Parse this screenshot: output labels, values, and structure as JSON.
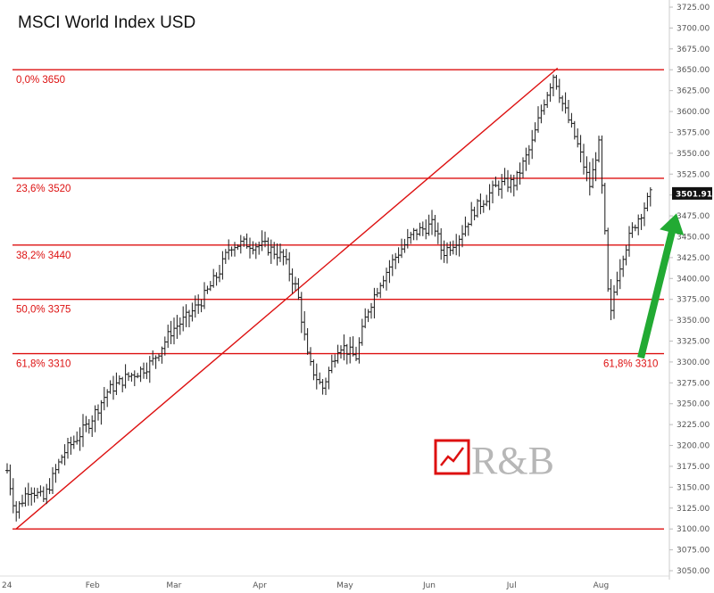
{
  "chart_data": {
    "type": "bar",
    "title": "MSCI World Index USD",
    "style": "ohlc",
    "ylim": [
      3050,
      3725
    ],
    "yticks": [
      3050,
      3075,
      3100,
      3125,
      3150,
      3175,
      3200,
      3225,
      3250,
      3275,
      3300,
      3325,
      3350,
      3375,
      3400,
      3425,
      3450,
      3475,
      3500,
      3525,
      3550,
      3575,
      3600,
      3625,
      3650,
      3675,
      3700,
      3725
    ],
    "xtick_labels": [
      "24",
      "Feb",
      "Mar",
      "Apr",
      "May",
      "Jun",
      "Jul",
      "Aug"
    ],
    "x_range": [
      "2024-01-02",
      "2024-08-20"
    ],
    "last_price": 3501.91,
    "last_price_label": "3501.91",
    "grid": false,
    "colors": {
      "fib_lines": "#dd1111",
      "bars": "#1a1a1a",
      "arrow": "#22aa33",
      "price_badge": "#111111"
    },
    "fib_levels": [
      {
        "pct": "0,0%",
        "value": 3650
      },
      {
        "pct": "23,6%",
        "value": 3520
      },
      {
        "pct": "38,2%",
        "value": 3440
      },
      {
        "pct": "50,0%",
        "value": 3375
      },
      {
        "pct": "61,8%",
        "value": 3310
      }
    ],
    "right_annotation": {
      "pct": "61,8%",
      "value": 3310
    },
    "base_level": 3100,
    "trend_line": {
      "from": [
        "2024-01-02",
        3100
      ],
      "to": [
        "2024-07-17",
        3652
      ]
    },
    "anchors": [
      [
        "2024-01-02",
        3170
      ],
      [
        "2024-01-05",
        3120
      ],
      [
        "2024-01-10",
        3150
      ],
      [
        "2024-01-15",
        3135
      ],
      [
        "2024-01-22",
        3190
      ],
      [
        "2024-01-31",
        3225
      ],
      [
        "2024-02-07",
        3265
      ],
      [
        "2024-02-14",
        3282
      ],
      [
        "2024-02-19",
        3290
      ],
      [
        "2024-02-23",
        3300
      ],
      [
        "2024-03-01",
        3338
      ],
      [
        "2024-03-07",
        3355
      ],
      [
        "2024-03-12",
        3375
      ],
      [
        "2024-03-18",
        3408
      ],
      [
        "2024-03-22",
        3440
      ],
      [
        "2024-03-28",
        3442
      ],
      [
        "2024-04-04",
        3438
      ],
      [
        "2024-04-10",
        3425
      ],
      [
        "2024-04-15",
        3385
      ],
      [
        "2024-04-19",
        3300
      ],
      [
        "2024-04-24",
        3268
      ],
      [
        "2024-04-30",
        3322
      ],
      [
        "2024-05-06",
        3305
      ],
      [
        "2024-05-10",
        3360
      ],
      [
        "2024-05-15",
        3398
      ],
      [
        "2024-05-21",
        3430
      ],
      [
        "2024-05-27",
        3455
      ],
      [
        "2024-06-03",
        3465
      ],
      [
        "2024-06-06",
        3430
      ],
      [
        "2024-06-12",
        3450
      ],
      [
        "2024-06-17",
        3480
      ],
      [
        "2024-06-21",
        3495
      ],
      [
        "2024-06-26",
        3512
      ],
      [
        "2024-07-02",
        3515
      ],
      [
        "2024-07-08",
        3560
      ],
      [
        "2024-07-12",
        3608
      ],
      [
        "2024-07-16",
        3645
      ],
      [
        "2024-07-19",
        3610
      ],
      [
        "2024-07-24",
        3565
      ],
      [
        "2024-07-29",
        3510
      ],
      [
        "2024-08-01",
        3565
      ],
      [
        "2024-08-03",
        3470
      ],
      [
        "2024-08-05",
        3345
      ],
      [
        "2024-08-07",
        3395
      ],
      [
        "2024-08-10",
        3432
      ],
      [
        "2024-08-14",
        3465
      ],
      [
        "2024-08-20",
        3502
      ]
    ]
  },
  "watermark": {
    "text": "R&B"
  },
  "icons": {
    "logo": "chart-up-logo-icon",
    "arrow": "up-arrow-icon"
  }
}
